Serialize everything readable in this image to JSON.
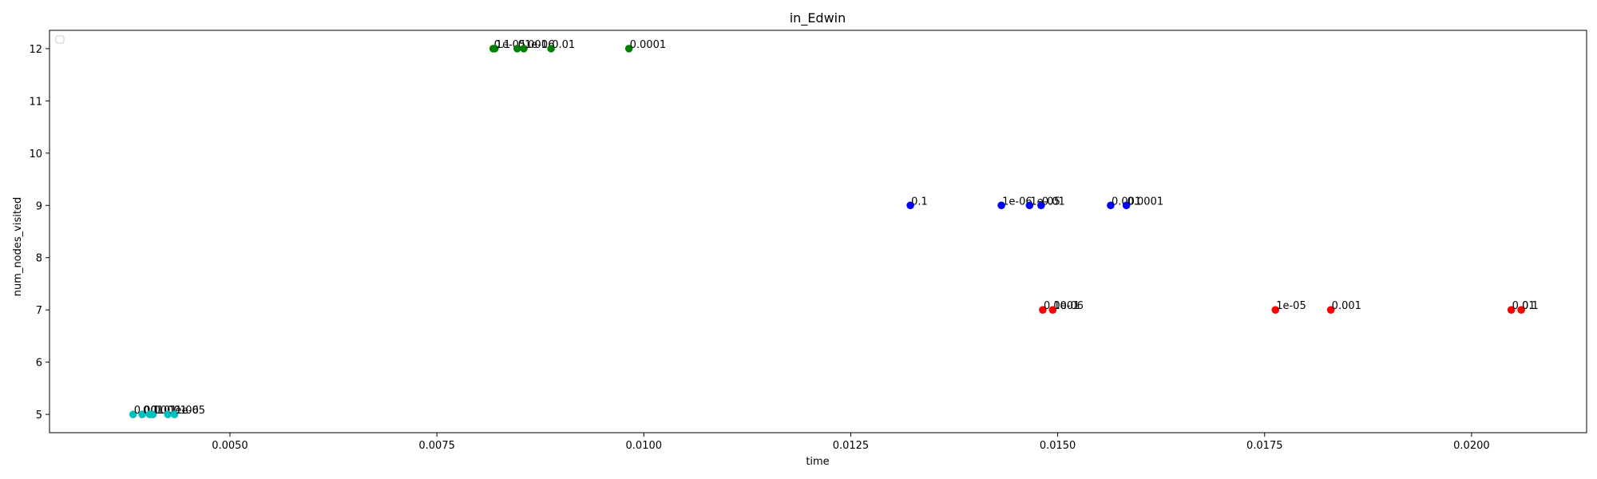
{
  "chart_data": {
    "type": "scatter",
    "title": "in_Edwin",
    "xlabel": "time",
    "ylabel": "num_nodes_visited",
    "xlim": [
      0.00282,
      0.02139
    ],
    "ylim": [
      4.65,
      12.35
    ],
    "x_ticks": [
      {
        "value": 0.005,
        "label": "0.0050"
      },
      {
        "value": 0.0075,
        "label": "0.0075"
      },
      {
        "value": 0.01,
        "label": "0.0100"
      },
      {
        "value": 0.0125,
        "label": "0.0125"
      },
      {
        "value": 0.015,
        "label": "0.0150"
      },
      {
        "value": 0.0175,
        "label": "0.0175"
      },
      {
        "value": 0.02,
        "label": "0.0200"
      }
    ],
    "y_ticks": [
      {
        "value": 5,
        "label": "5"
      },
      {
        "value": 6,
        "label": "6"
      },
      {
        "value": 7,
        "label": "7"
      },
      {
        "value": 8,
        "label": "8"
      },
      {
        "value": 9,
        "label": "9"
      },
      {
        "value": 10,
        "label": "10"
      },
      {
        "value": 11,
        "label": "11"
      },
      {
        "value": 12,
        "label": "12"
      }
    ],
    "grid": false,
    "legend": "upper left, empty",
    "series": [
      {
        "color": "#00bfbf",
        "points": [
          {
            "x": 0.00383,
            "y": 5,
            "label": "0.001"
          },
          {
            "x": 0.00394,
            "y": 5,
            "label": "0.1"
          },
          {
            "x": 0.00403,
            "y": 5,
            "label": "0.0001"
          },
          {
            "x": 0.00407,
            "y": 5,
            "label": "0.01"
          },
          {
            "x": 0.00425,
            "y": 5,
            "label": "1e-06"
          },
          {
            "x": 0.00433,
            "y": 5,
            "label": "1e-05"
          }
        ]
      },
      {
        "color": "#008000",
        "points": [
          {
            "x": 0.00818,
            "y": 12,
            "label": "0.1"
          },
          {
            "x": 0.0082,
            "y": 12,
            "label": "1e-05"
          },
          {
            "x": 0.00847,
            "y": 12,
            "label": "0.001"
          },
          {
            "x": 0.00855,
            "y": 12,
            "label": "1e-06"
          },
          {
            "x": 0.00888,
            "y": 12,
            "label": "0.01"
          },
          {
            "x": 0.00982,
            "y": 12,
            "label": "0.0001"
          }
        ]
      },
      {
        "color": "#0000ff",
        "points": [
          {
            "x": 0.01322,
            "y": 9,
            "label": "0.1"
          },
          {
            "x": 0.01432,
            "y": 9,
            "label": "1e-06"
          },
          {
            "x": 0.01466,
            "y": 9,
            "label": "1e-05"
          },
          {
            "x": 0.0148,
            "y": 9,
            "label": "0.01"
          },
          {
            "x": 0.01564,
            "y": 9,
            "label": "0.001"
          },
          {
            "x": 0.01583,
            "y": 9,
            "label": "0.0001"
          }
        ]
      },
      {
        "color": "#ff0000",
        "points": [
          {
            "x": 0.01482,
            "y": 7,
            "label": "0.0001"
          },
          {
            "x": 0.01494,
            "y": 7,
            "label": "1e-06"
          },
          {
            "x": 0.01763,
            "y": 7,
            "label": "1e-05"
          },
          {
            "x": 0.0183,
            "y": 7,
            "label": "0.001"
          },
          {
            "x": 0.02048,
            "y": 7,
            "label": "0.01"
          },
          {
            "x": 0.0206,
            "y": 7,
            "label": "0.1"
          }
        ]
      }
    ]
  }
}
